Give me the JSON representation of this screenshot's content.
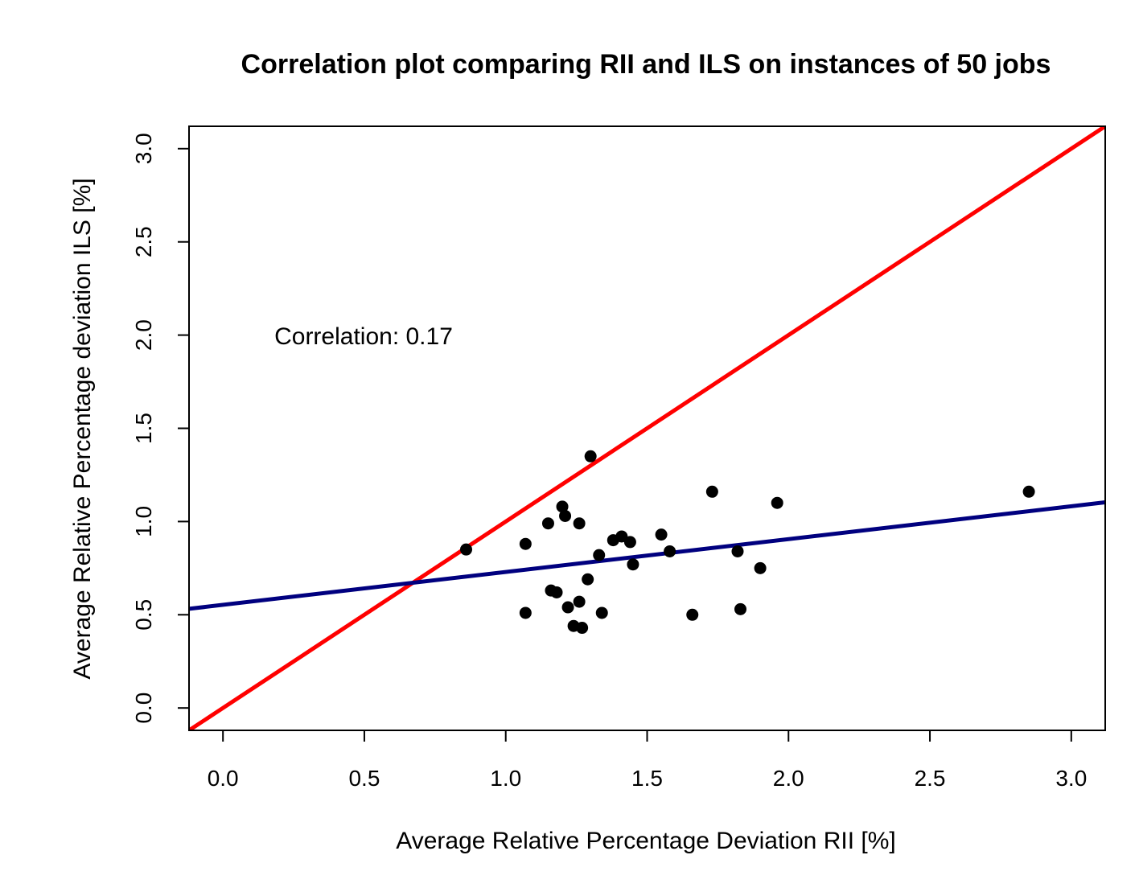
{
  "chart_data": {
    "type": "scatter",
    "title": "Correlation plot comparing RII and ILS on instances of 50 jobs",
    "xlabel": "Average Relative Percentage Deviation RII [%]",
    "ylabel": "Average Relative Percentage deviation ILS [%]",
    "xlim": [
      -0.12,
      3.12
    ],
    "ylim": [
      -0.12,
      3.12
    ],
    "xticks": [
      "0.0",
      "0.5",
      "1.0",
      "1.5",
      "2.0",
      "2.5",
      "3.0"
    ],
    "yticks": [
      "0.0",
      "0.5",
      "1.0",
      "1.5",
      "2.0",
      "2.5",
      "3.0"
    ],
    "grid": false,
    "annotation": {
      "text": "Correlation: 0.17",
      "x": 0.5,
      "y": 2.0
    },
    "series": [
      {
        "type": "scatter",
        "color": "#000000",
        "points": [
          [
            0.86,
            0.85
          ],
          [
            1.07,
            0.88
          ],
          [
            1.07,
            0.51
          ],
          [
            1.15,
            0.99
          ],
          [
            1.16,
            0.63
          ],
          [
            1.18,
            0.62
          ],
          [
            1.2,
            1.08
          ],
          [
            1.21,
            1.03
          ],
          [
            1.22,
            0.54
          ],
          [
            1.24,
            0.44
          ],
          [
            1.26,
            0.57
          ],
          [
            1.26,
            0.99
          ],
          [
            1.27,
            0.43
          ],
          [
            1.29,
            0.69
          ],
          [
            1.3,
            1.35
          ],
          [
            1.33,
            0.82
          ],
          [
            1.34,
            0.51
          ],
          [
            1.38,
            0.9
          ],
          [
            1.41,
            0.92
          ],
          [
            1.44,
            0.89
          ],
          [
            1.45,
            0.77
          ],
          [
            1.55,
            0.93
          ],
          [
            1.58,
            0.84
          ],
          [
            1.66,
            0.5
          ],
          [
            1.73,
            1.16
          ],
          [
            1.82,
            0.84
          ],
          [
            1.83,
            0.53
          ],
          [
            1.9,
            0.75
          ],
          [
            1.96,
            1.1
          ],
          [
            2.85,
            1.16
          ]
        ]
      },
      {
        "type": "line",
        "color": "#ff0000",
        "x": [
          -0.12,
          3.12
        ],
        "y": [
          -0.12,
          3.12
        ]
      },
      {
        "type": "line",
        "color": "#00007f",
        "x": [
          -0.12,
          3.12
        ],
        "y": [
          0.532,
          1.103
        ]
      }
    ]
  }
}
